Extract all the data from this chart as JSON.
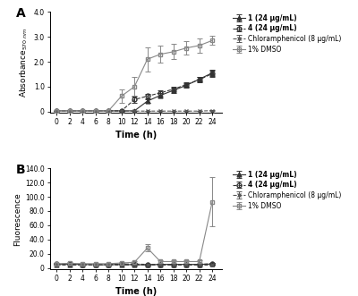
{
  "time_points": [
    0,
    2,
    4,
    6,
    8,
    10,
    12,
    14,
    16,
    18,
    20,
    22,
    24
  ],
  "panel_A": {
    "series_1": {
      "label": "1 (24 μg/mL)",
      "y": [
        0.03,
        0.03,
        0.03,
        0.03,
        0.03,
        0.03,
        0.03,
        0.42,
        0.65,
        0.85,
        1.05,
        1.3,
        1.55
      ],
      "yerr": [
        0.01,
        0.01,
        0.01,
        0.01,
        0.01,
        0.01,
        0.01,
        0.08,
        0.1,
        0.1,
        0.1,
        0.1,
        0.12
      ],
      "marker": "^",
      "linestyle": "-",
      "color": "#333333",
      "fillstyle": "full"
    },
    "series_4": {
      "label": "4 (24 μg/mL)",
      "y": [
        0.03,
        0.03,
        0.03,
        0.03,
        0.03,
        0.03,
        0.48,
        0.62,
        0.75,
        0.9,
        1.08,
        1.28,
        1.52
      ],
      "yerr": [
        0.01,
        0.01,
        0.01,
        0.01,
        0.01,
        0.01,
        0.12,
        0.1,
        0.1,
        0.1,
        0.1,
        0.1,
        0.12
      ],
      "marker": "o",
      "linestyle": "--",
      "color": "#333333",
      "fillstyle": "none"
    },
    "chloramphenicol": {
      "label": "Chloramphenicol (8 μg/mL)",
      "y": [
        0.02,
        0.02,
        0.02,
        0.02,
        0.02,
        0.02,
        0.02,
        0.02,
        0.02,
        0.02,
        0.02,
        0.02,
        0.04
      ],
      "yerr": [
        0.005,
        0.005,
        0.005,
        0.005,
        0.005,
        0.005,
        0.005,
        0.005,
        0.005,
        0.005,
        0.005,
        0.005,
        0.01
      ],
      "marker": "x",
      "linestyle": "--",
      "color": "#555555",
      "fillstyle": "full"
    },
    "dmso": {
      "label": "1% DMSO",
      "y": [
        0.03,
        0.03,
        0.03,
        0.03,
        0.03,
        0.62,
        1.0,
        2.1,
        2.3,
        2.4,
        2.55,
        2.65,
        2.85
      ],
      "yerr": [
        0.01,
        0.01,
        0.01,
        0.01,
        0.01,
        0.28,
        0.38,
        0.48,
        0.35,
        0.3,
        0.28,
        0.28,
        0.18
      ],
      "marker": "s",
      "linestyle": "-",
      "color": "#888888",
      "fillstyle": "none"
    },
    "ylabel": "Absorbance$_{570\\ nm}$",
    "ylim": [
      -0.05,
      4.0
    ],
    "yticks": [
      0.0,
      1.0,
      2.0,
      3.0,
      4.0
    ],
    "yticklabels": [
      "0",
      "1.0",
      "2.0",
      "3.0",
      "4.0"
    ]
  },
  "panel_B": {
    "series_1": {
      "label": "1 (24 μg/mL)",
      "y": [
        5.0,
        5.0,
        5.0,
        4.5,
        4.5,
        5.0,
        4.5,
        4.5,
        5.0,
        5.0,
        5.0,
        5.0,
        5.5
      ],
      "yerr": [
        1.0,
        1.0,
        1.0,
        1.0,
        1.0,
        1.0,
        1.0,
        1.0,
        1.0,
        1.0,
        1.0,
        1.0,
        1.5
      ],
      "marker": "^",
      "linestyle": "-",
      "color": "#333333",
      "fillstyle": "full"
    },
    "series_4": {
      "label": "4 (24 μg/mL)",
      "y": [
        5.5,
        5.5,
        5.0,
        5.0,
        5.0,
        5.5,
        5.5,
        5.0,
        5.0,
        5.0,
        5.0,
        5.0,
        6.0
      ],
      "yerr": [
        1.0,
        1.0,
        1.0,
        1.0,
        1.0,
        1.0,
        1.0,
        1.0,
        1.0,
        1.0,
        1.0,
        1.0,
        1.5
      ],
      "marker": "o",
      "linestyle": "--",
      "color": "#333333",
      "fillstyle": "none"
    },
    "chloramphenicol": {
      "label": "Chloramphenicol (8 μg/mL)",
      "y": [
        5.0,
        5.0,
        5.0,
        5.0,
        5.0,
        5.0,
        5.0,
        5.0,
        5.0,
        5.0,
        5.0,
        5.0,
        5.0
      ],
      "yerr": [
        1.0,
        1.0,
        1.0,
        1.0,
        1.0,
        1.0,
        1.0,
        1.0,
        1.0,
        1.0,
        1.0,
        1.0,
        1.0
      ],
      "marker": "x",
      "linestyle": "--",
      "color": "#555555",
      "fillstyle": "full"
    },
    "dmso": {
      "label": "1% DMSO",
      "y": [
        6.0,
        6.5,
        6.0,
        6.0,
        6.0,
        7.0,
        8.0,
        28.0,
        9.0,
        9.0,
        9.0,
        9.0,
        93.0
      ],
      "yerr": [
        1.5,
        1.5,
        1.5,
        1.5,
        1.5,
        1.5,
        2.0,
        5.0,
        2.0,
        2.0,
        2.0,
        2.0,
        35.0
      ],
      "marker": "s",
      "linestyle": "-",
      "color": "#888888",
      "fillstyle": "none"
    },
    "ylabel": "Fluorescence",
    "ylim": [
      -2,
      140.0
    ],
    "yticks": [
      0.0,
      20.0,
      40.0,
      60.0,
      80.0,
      100.0,
      120.0,
      140.0
    ],
    "yticklabels": [
      "0",
      "20.0",
      "40.0",
      "60.0",
      "80.0",
      "100.0",
      "120.0",
      "140.0"
    ]
  },
  "xlabel": "Time (h)",
  "xticks": [
    0,
    2,
    4,
    6,
    8,
    10,
    12,
    14,
    16,
    18,
    20,
    22,
    24
  ],
  "background_color": "#ffffff",
  "panel_label_A": "A",
  "panel_label_B": "B",
  "legend_labels_bold": [
    "1",
    "4"
  ]
}
